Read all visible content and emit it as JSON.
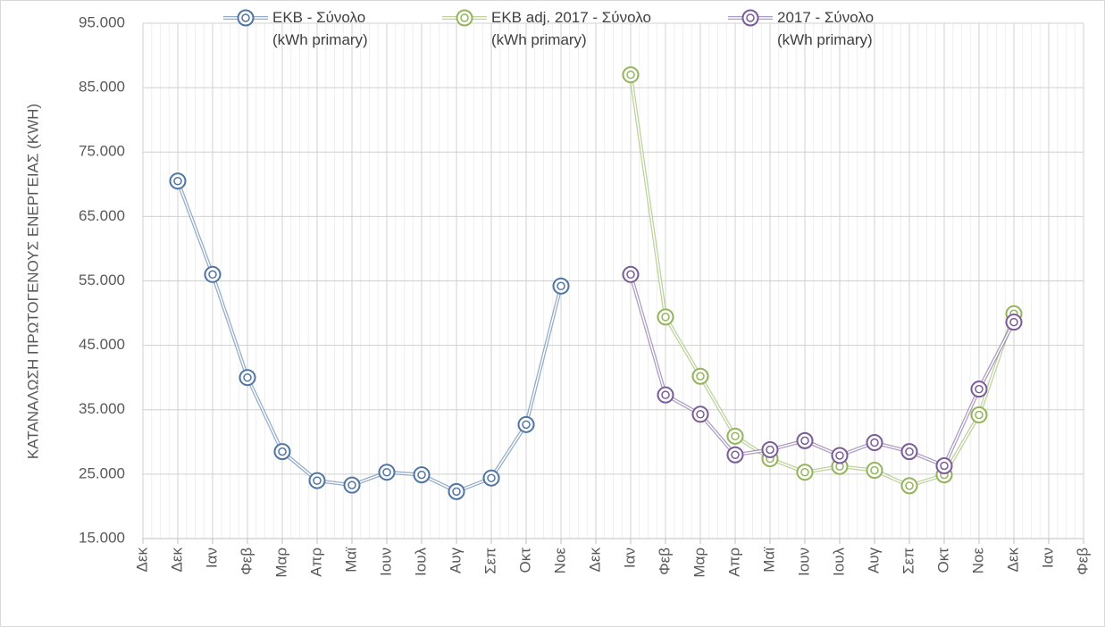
{
  "chart_data": {
    "type": "line",
    "y_label": "ΚΑΤΑΝΑΛΩΣΗ ΠΡΩΤΟΓΕΝΟΥΣ ΕΝΕΡΓΕΙΑΣ (KWH)",
    "categories": [
      "Δεκ",
      "Δεκ",
      "Ιαν",
      "Φεβ",
      "Μαρ",
      "Απρ",
      "Μαϊ",
      "Ιουν",
      "Ιουλ",
      "Αυγ",
      "Σεπ",
      "Οκτ",
      "Νοε",
      "Δεκ",
      "Ιαν",
      "Φεβ",
      "Μαρ",
      "Απρ",
      "Μαϊ",
      "Ιουν",
      "Ιουλ",
      "Αυγ",
      "Σεπ",
      "Οκτ",
      "Νοε",
      "Δεκ",
      "Ιαν",
      "Φεβ"
    ],
    "series": [
      {
        "name": "ΕΚΒ - Σύνολο\n(kWh primary)",
        "color": "#4f75a3",
        "values": [
          null,
          70500,
          56000,
          40000,
          28500,
          24000,
          23300,
          25300,
          24900,
          22300,
          24400,
          32700,
          54200,
          null,
          null,
          null,
          null,
          null,
          null,
          null,
          null,
          null,
          null,
          null,
          null,
          null,
          null,
          null
        ]
      },
      {
        "name": "ΕΚΒ adj. 2017 - Σύνολο\n(kWh primary)",
        "color": "#93b45a",
        "values": [
          null,
          null,
          null,
          null,
          null,
          null,
          null,
          null,
          null,
          null,
          null,
          null,
          null,
          null,
          87000,
          49400,
          40200,
          30900,
          27400,
          25300,
          26200,
          25600,
          23200,
          24900,
          34200,
          49900,
          null,
          null
        ]
      },
      {
        "name": "2017  - Σύνολο\n(kWh primary)",
        "color": "#7a5c98",
        "values": [
          null,
          null,
          null,
          null,
          null,
          null,
          null,
          null,
          null,
          null,
          null,
          null,
          null,
          null,
          56000,
          37300,
          34300,
          28000,
          28800,
          30200,
          27900,
          29900,
          28500,
          26300,
          38200,
          48600,
          null,
          null
        ]
      }
    ],
    "ylim": [
      15000,
      95000
    ],
    "yticks": [
      {
        "value": 15000,
        "label": "15.000"
      },
      {
        "value": 25000,
        "label": "25.000"
      },
      {
        "value": 35000,
        "label": "35.000"
      },
      {
        "value": 45000,
        "label": "45.000"
      },
      {
        "value": 55000,
        "label": "55.000"
      },
      {
        "value": 65000,
        "label": "65.000"
      },
      {
        "value": 75000,
        "label": "75.000"
      },
      {
        "value": 85000,
        "label": "85.000"
      },
      {
        "value": 95000,
        "label": "95.000"
      }
    ],
    "grid": true,
    "legend": "top"
  }
}
